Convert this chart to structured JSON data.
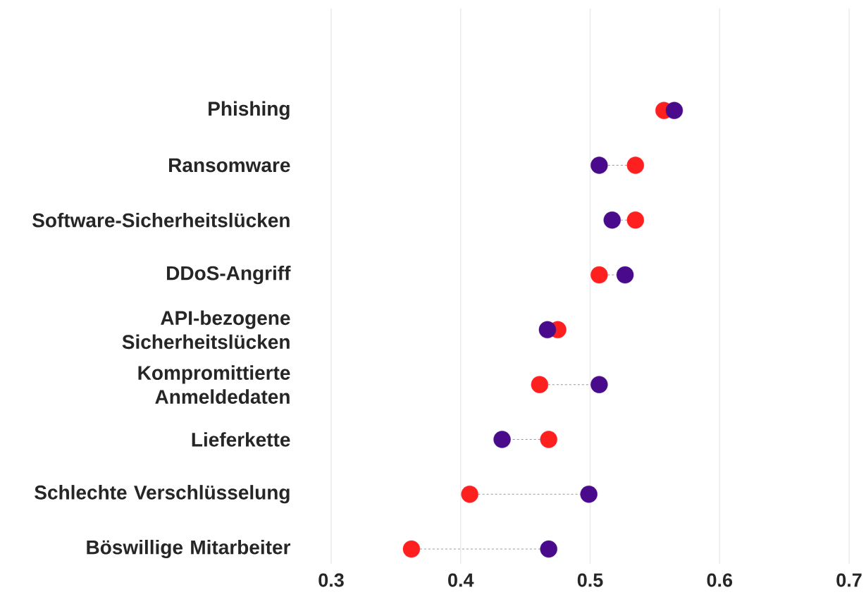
{
  "chart_data": {
    "type": "scatter",
    "categories": [
      "Phishing",
      "Ransomware",
      "Software-Sicherheitslücken",
      "DDoS-Angriff",
      "API-bezogene Sicherheitslücken",
      "Kompromittierte Anmeldedaten",
      "Lieferkette",
      "Schlechte Verschlüsselung",
      "Böswillige Mitarbeiter"
    ],
    "orientation": "horizontal",
    "series": [
      {
        "color": "#fe1f1f",
        "values": [
          0.557,
          0.535,
          0.535,
          0.507,
          0.475,
          0.461,
          0.468,
          0.407,
          0.362
        ]
      },
      {
        "color": "#4a0a8c",
        "values": [
          0.565,
          0.507,
          0.517,
          0.527,
          0.467,
          0.507,
          0.432,
          0.499,
          0.468
        ]
      }
    ],
    "xlim": [
      0.3,
      0.7
    ],
    "xticks": [
      0.3,
      0.4,
      0.5,
      0.6,
      0.7
    ],
    "grid": "x",
    "marker": "circle"
  }
}
